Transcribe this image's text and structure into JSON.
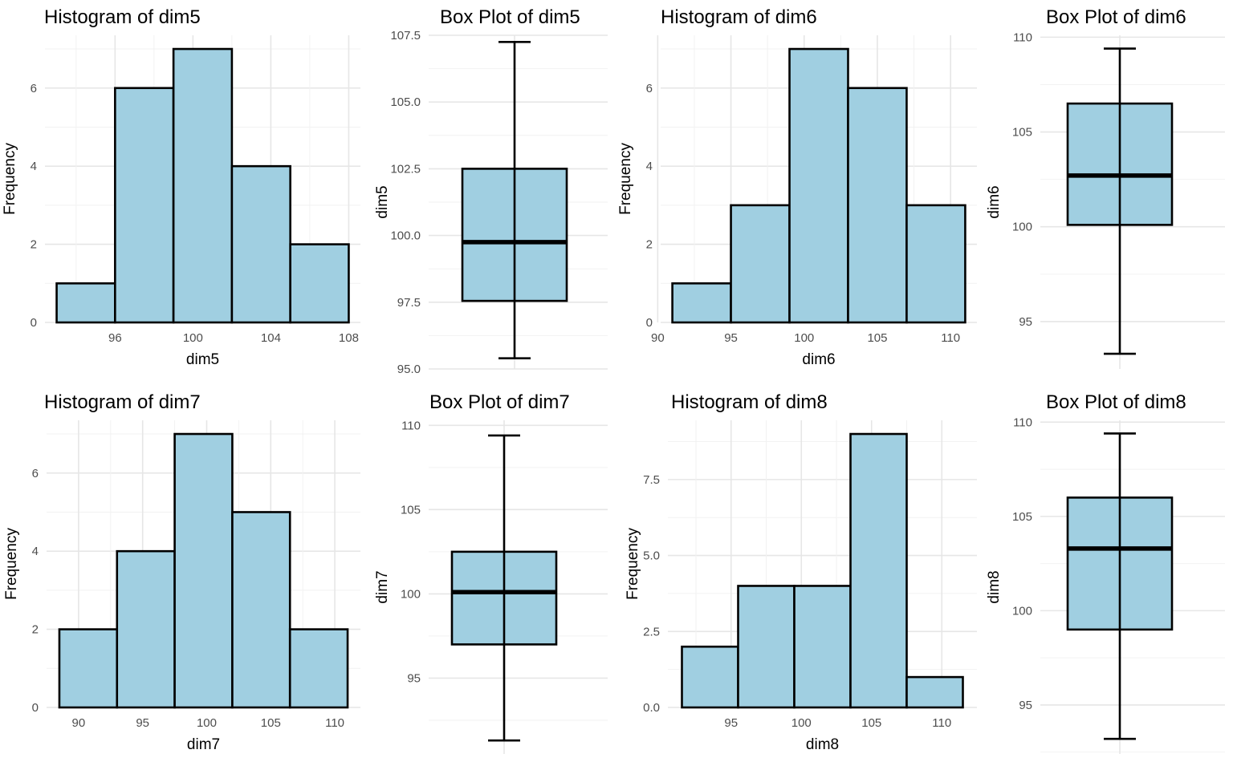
{
  "chart_data": [
    {
      "type": "bar",
      "title": "Histogram of dim5",
      "xlabel": "dim5",
      "ylabel": "Frequency",
      "bin_edges": [
        93,
        96,
        99,
        102,
        105,
        108
      ],
      "values": [
        1,
        6,
        7,
        4,
        2
      ],
      "x_ticks": [
        96,
        100,
        104,
        108
      ],
      "y_ticks": [
        0,
        2,
        4,
        6
      ],
      "xlim": [
        92.4,
        108.6
      ],
      "ylim": [
        0,
        7.35
      ]
    },
    {
      "type": "box",
      "title": "Box Plot of dim5",
      "ylabel": "dim5",
      "whisker_low": 95.4,
      "q1": 97.55,
      "median": 99.75,
      "q3": 102.5,
      "whisker_high": 107.25,
      "y_ticks": [
        "95.0",
        "97.5",
        "100.0",
        "102.5",
        "105.0",
        "107.5"
      ],
      "ylim": [
        95.0,
        107.5
      ]
    },
    {
      "type": "bar",
      "title": "Histogram of dim6",
      "xlabel": "dim6",
      "ylabel": "Frequency",
      "bin_edges": [
        91,
        95,
        99,
        103,
        107,
        111
      ],
      "values": [
        1,
        3,
        7,
        6,
        3
      ],
      "x_ticks": [
        90,
        95,
        100,
        105,
        110
      ],
      "y_ticks": [
        0,
        2,
        4,
        6
      ],
      "xlim": [
        90.2,
        111.8
      ],
      "ylim": [
        0,
        7.35
      ]
    },
    {
      "type": "box",
      "title": "Box Plot of dim6",
      "ylabel": "dim6",
      "whisker_low": 93.3,
      "q1": 100.1,
      "median": 102.7,
      "q3": 106.5,
      "whisker_high": 109.4,
      "y_ticks": [
        "95",
        "100",
        "105",
        "110"
      ],
      "ylim": [
        92.5,
        110.1
      ]
    },
    {
      "type": "bar",
      "title": "Histogram of dim7",
      "xlabel": "dim7",
      "ylabel": "Frequency",
      "bin_edges": [
        88.5,
        93,
        97.5,
        102,
        106.5,
        111
      ],
      "values": [
        2,
        4,
        7,
        5,
        2
      ],
      "x_ticks": [
        90,
        95,
        100,
        105,
        110
      ],
      "y_ticks": [
        0,
        2,
        4,
        6
      ],
      "xlim": [
        87.5,
        112
      ],
      "ylim": [
        0,
        7.35
      ]
    },
    {
      "type": "box",
      "title": "Box Plot of dim7",
      "ylabel": "dim7",
      "whisker_low": 91.3,
      "q1": 97.0,
      "median": 100.1,
      "q3": 102.5,
      "whisker_high": 109.4,
      "y_ticks": [
        "95",
        "100",
        "105",
        "110"
      ],
      "ylim": [
        90.5,
        110.3
      ]
    },
    {
      "type": "bar",
      "title": "Histogram of dim8",
      "xlabel": "dim8",
      "ylabel": "Frequency",
      "bin_edges": [
        91.5,
        95.5,
        99.5,
        103.5,
        107.5,
        111.5
      ],
      "values": [
        2,
        4,
        4,
        9,
        1
      ],
      "x_ticks": [
        95,
        100,
        105,
        110
      ],
      "y_ticks": [
        "0.0",
        "2.5",
        "5.0",
        "7.5"
      ],
      "xlim": [
        90.5,
        112.5
      ],
      "ylim": [
        0,
        9.45
      ]
    },
    {
      "type": "box",
      "title": "Box Plot of dim8",
      "ylabel": "dim8",
      "whisker_low": 93.2,
      "q1": 99.0,
      "median": 103.3,
      "q3": 106.0,
      "whisker_high": 109.4,
      "y_ticks": [
        "95",
        "100",
        "105",
        "110"
      ],
      "ylim": [
        92.4,
        110.1
      ]
    }
  ],
  "colors": {
    "fill": "#a0cfe1",
    "outline": "#000000",
    "grid": "#e6e6e6",
    "tick_text": "#4d4d4d"
  },
  "grid": true,
  "background": "#ffffff"
}
